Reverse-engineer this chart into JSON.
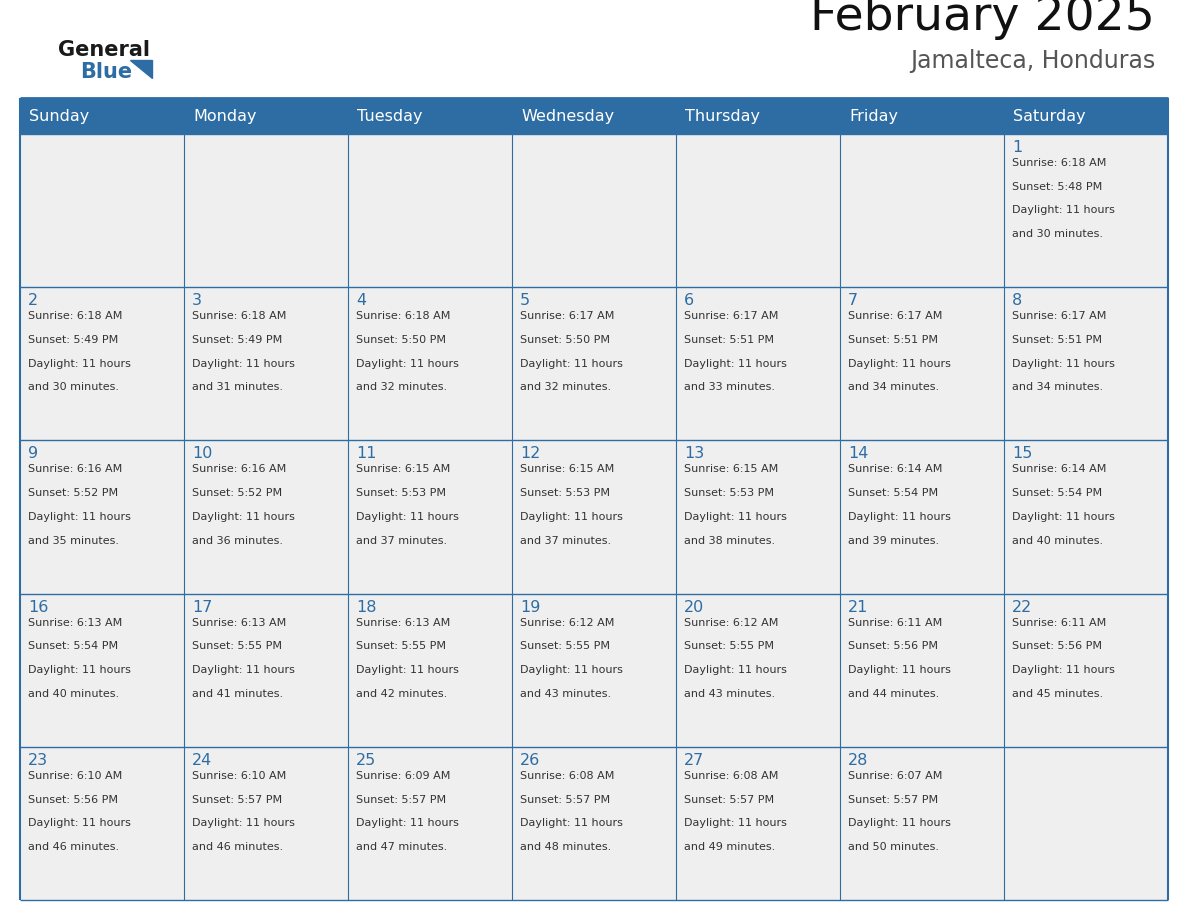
{
  "title": "February 2025",
  "subtitle": "Jamalteca, Honduras",
  "header_bg_color": "#2E6DA4",
  "header_text_color": "#FFFFFF",
  "border_color": "#2E6DA4",
  "cell_bg_color": "#EFEFEF",
  "text_color": "#333333",
  "day_number_color": "#2E6DA4",
  "day_headers": [
    "Sunday",
    "Monday",
    "Tuesday",
    "Wednesday",
    "Thursday",
    "Friday",
    "Saturday"
  ],
  "calendar_data": [
    [
      {
        "day": "",
        "info": ""
      },
      {
        "day": "",
        "info": ""
      },
      {
        "day": "",
        "info": ""
      },
      {
        "day": "",
        "info": ""
      },
      {
        "day": "",
        "info": ""
      },
      {
        "day": "",
        "info": ""
      },
      {
        "day": "1",
        "info": "Sunrise: 6:18 AM\nSunset: 5:48 PM\nDaylight: 11 hours\nand 30 minutes."
      }
    ],
    [
      {
        "day": "2",
        "info": "Sunrise: 6:18 AM\nSunset: 5:49 PM\nDaylight: 11 hours\nand 30 minutes."
      },
      {
        "day": "3",
        "info": "Sunrise: 6:18 AM\nSunset: 5:49 PM\nDaylight: 11 hours\nand 31 minutes."
      },
      {
        "day": "4",
        "info": "Sunrise: 6:18 AM\nSunset: 5:50 PM\nDaylight: 11 hours\nand 32 minutes."
      },
      {
        "day": "5",
        "info": "Sunrise: 6:17 AM\nSunset: 5:50 PM\nDaylight: 11 hours\nand 32 minutes."
      },
      {
        "day": "6",
        "info": "Sunrise: 6:17 AM\nSunset: 5:51 PM\nDaylight: 11 hours\nand 33 minutes."
      },
      {
        "day": "7",
        "info": "Sunrise: 6:17 AM\nSunset: 5:51 PM\nDaylight: 11 hours\nand 34 minutes."
      },
      {
        "day": "8",
        "info": "Sunrise: 6:17 AM\nSunset: 5:51 PM\nDaylight: 11 hours\nand 34 minutes."
      }
    ],
    [
      {
        "day": "9",
        "info": "Sunrise: 6:16 AM\nSunset: 5:52 PM\nDaylight: 11 hours\nand 35 minutes."
      },
      {
        "day": "10",
        "info": "Sunrise: 6:16 AM\nSunset: 5:52 PM\nDaylight: 11 hours\nand 36 minutes."
      },
      {
        "day": "11",
        "info": "Sunrise: 6:15 AM\nSunset: 5:53 PM\nDaylight: 11 hours\nand 37 minutes."
      },
      {
        "day": "12",
        "info": "Sunrise: 6:15 AM\nSunset: 5:53 PM\nDaylight: 11 hours\nand 37 minutes."
      },
      {
        "day": "13",
        "info": "Sunrise: 6:15 AM\nSunset: 5:53 PM\nDaylight: 11 hours\nand 38 minutes."
      },
      {
        "day": "14",
        "info": "Sunrise: 6:14 AM\nSunset: 5:54 PM\nDaylight: 11 hours\nand 39 minutes."
      },
      {
        "day": "15",
        "info": "Sunrise: 6:14 AM\nSunset: 5:54 PM\nDaylight: 11 hours\nand 40 minutes."
      }
    ],
    [
      {
        "day": "16",
        "info": "Sunrise: 6:13 AM\nSunset: 5:54 PM\nDaylight: 11 hours\nand 40 minutes."
      },
      {
        "day": "17",
        "info": "Sunrise: 6:13 AM\nSunset: 5:55 PM\nDaylight: 11 hours\nand 41 minutes."
      },
      {
        "day": "18",
        "info": "Sunrise: 6:13 AM\nSunset: 5:55 PM\nDaylight: 11 hours\nand 42 minutes."
      },
      {
        "day": "19",
        "info": "Sunrise: 6:12 AM\nSunset: 5:55 PM\nDaylight: 11 hours\nand 43 minutes."
      },
      {
        "day": "20",
        "info": "Sunrise: 6:12 AM\nSunset: 5:55 PM\nDaylight: 11 hours\nand 43 minutes."
      },
      {
        "day": "21",
        "info": "Sunrise: 6:11 AM\nSunset: 5:56 PM\nDaylight: 11 hours\nand 44 minutes."
      },
      {
        "day": "22",
        "info": "Sunrise: 6:11 AM\nSunset: 5:56 PM\nDaylight: 11 hours\nand 45 minutes."
      }
    ],
    [
      {
        "day": "23",
        "info": "Sunrise: 6:10 AM\nSunset: 5:56 PM\nDaylight: 11 hours\nand 46 minutes."
      },
      {
        "day": "24",
        "info": "Sunrise: 6:10 AM\nSunset: 5:57 PM\nDaylight: 11 hours\nand 46 minutes."
      },
      {
        "day": "25",
        "info": "Sunrise: 6:09 AM\nSunset: 5:57 PM\nDaylight: 11 hours\nand 47 minutes."
      },
      {
        "day": "26",
        "info": "Sunrise: 6:08 AM\nSunset: 5:57 PM\nDaylight: 11 hours\nand 48 minutes."
      },
      {
        "day": "27",
        "info": "Sunrise: 6:08 AM\nSunset: 5:57 PM\nDaylight: 11 hours\nand 49 minutes."
      },
      {
        "day": "28",
        "info": "Sunrise: 6:07 AM\nSunset: 5:57 PM\nDaylight: 11 hours\nand 50 minutes."
      },
      {
        "day": "",
        "info": ""
      }
    ]
  ]
}
